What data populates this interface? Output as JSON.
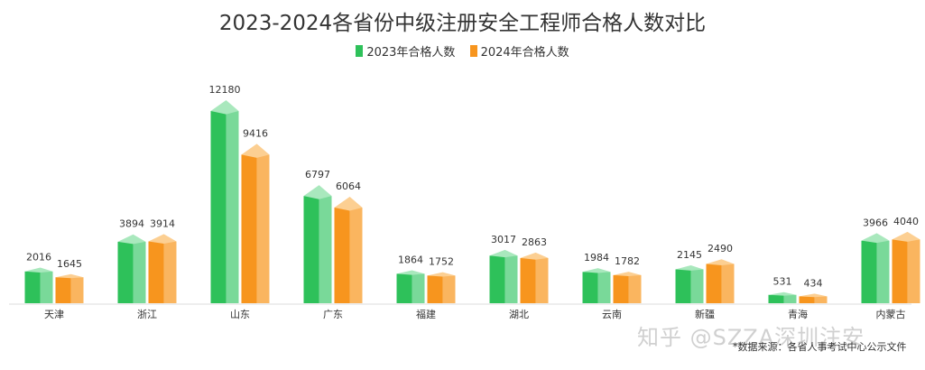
{
  "chart_data": {
    "type": "bar",
    "title": "2023-2024各省份中级注册安全工程师合格人数对比",
    "categories": [
      "天津",
      "浙江",
      "山东",
      "广东",
      "福建",
      "湖北",
      "云南",
      "新疆",
      "青海",
      "内蒙古"
    ],
    "series": [
      {
        "name": "2023年合格人数",
        "color": "#2ec15a",
        "values": [
          2016,
          3894,
          12180,
          6797,
          1864,
          3017,
          1984,
          2145,
          531,
          3966
        ]
      },
      {
        "name": "2024年合格人数",
        "color": "#f7951e",
        "values": [
          1645,
          3914,
          9416,
          6064,
          1752,
          2863,
          1782,
          2490,
          434,
          4040
        ]
      }
    ],
    "ylim": [
      0,
      12180
    ],
    "grid": false,
    "legend_position": "top-center",
    "xlabel": "",
    "ylabel": ""
  },
  "source_note": "*数据来源：各省人事考试中心公示文件",
  "watermark": "知乎 @SZZA深圳注安"
}
